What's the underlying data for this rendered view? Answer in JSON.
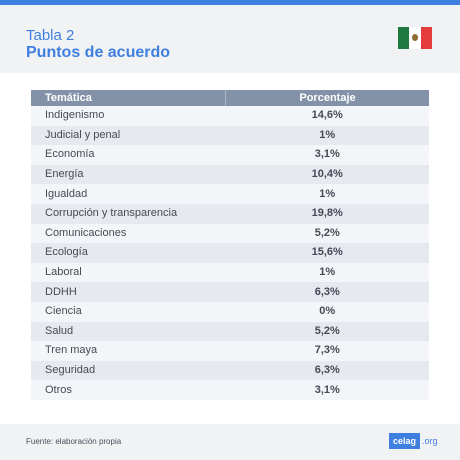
{
  "header": {
    "subtitle": "Tabla 2",
    "title": "Puntos de acuerdo",
    "flag": "mexico-flag"
  },
  "table": {
    "columns": [
      "Temática",
      "Porcentaje"
    ],
    "rows": [
      {
        "tema": "Indigenismo",
        "pct": "14,6%"
      },
      {
        "tema": "Judicial y penal",
        "pct": "1%"
      },
      {
        "tema": "Economía",
        "pct": "3,1%"
      },
      {
        "tema": "Energía",
        "pct": "10,4%"
      },
      {
        "tema": "Igualdad",
        "pct": "1%"
      },
      {
        "tema": "Corrupción y transparencia",
        "pct": "19,8%"
      },
      {
        "tema": "Comunicaciones",
        "pct": "5,2%"
      },
      {
        "tema": "Ecología",
        "pct": "15,6%"
      },
      {
        "tema": "Laboral",
        "pct": "1%"
      },
      {
        "tema": "DDHH",
        "pct": "6,3%"
      },
      {
        "tema": "Ciencia",
        "pct": "0%"
      },
      {
        "tema": "Salud",
        "pct": "5,2%"
      },
      {
        "tema": "Tren maya",
        "pct": "7,3%"
      },
      {
        "tema": "Seguridad",
        "pct": "6,3%"
      },
      {
        "tema": "Otros",
        "pct": "3,1%"
      }
    ]
  },
  "footer": {
    "source": "Fuente: elaboración propia",
    "logo_main": "celag",
    "logo_ext": ".org"
  }
}
